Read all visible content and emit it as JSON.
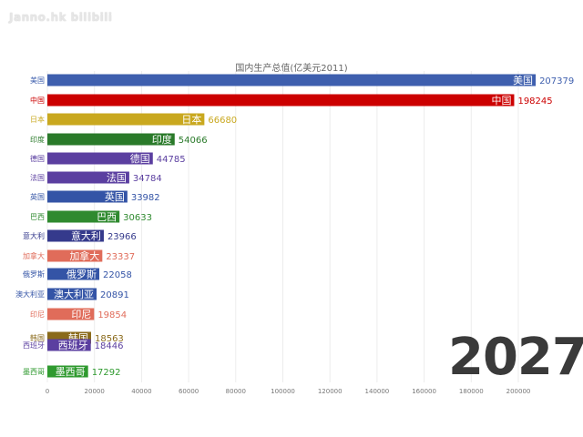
{
  "watermark": "Janno.hk bilibili",
  "year_label": "2027",
  "chart_data": {
    "type": "bar",
    "orientation": "horizontal",
    "title": "国内生产总值(亿美元2011)",
    "xlabel": "",
    "ylabel": "",
    "xlim": [
      0,
      210000
    ],
    "grid": true,
    "x_ticks": [
      "0",
      "20000",
      "40000",
      "60000",
      "80000",
      "100000",
      "120000",
      "140000",
      "160000",
      "180000",
      "200000"
    ],
    "categories": [
      "美国",
      "中国",
      "日本",
      "印度",
      "德国",
      "法国",
      "英国",
      "巴西",
      "意大利",
      "加拿大",
      "俄罗斯",
      "澳大利亚",
      "印尼",
      "韩国",
      "西班牙",
      "墨西哥"
    ],
    "values": [
      207379,
      198245,
      66680,
      54066,
      44785,
      34784,
      33982,
      30633,
      23966,
      23337,
      22058,
      20891,
      19854,
      18563,
      18446,
      17292
    ],
    "colors": [
      "#3e5fae",
      "#cc0000",
      "#c9a81f",
      "#2a7a2a",
      "#5b3fa0",
      "#5b3fa0",
      "#3454a6",
      "#2f8a2f",
      "#353a8c",
      "#e06c5a",
      "#3454a6",
      "#3454a6",
      "#e06c5a",
      "#8a6a1a",
      "#5b3fa0",
      "#2f9a2f"
    ]
  }
}
